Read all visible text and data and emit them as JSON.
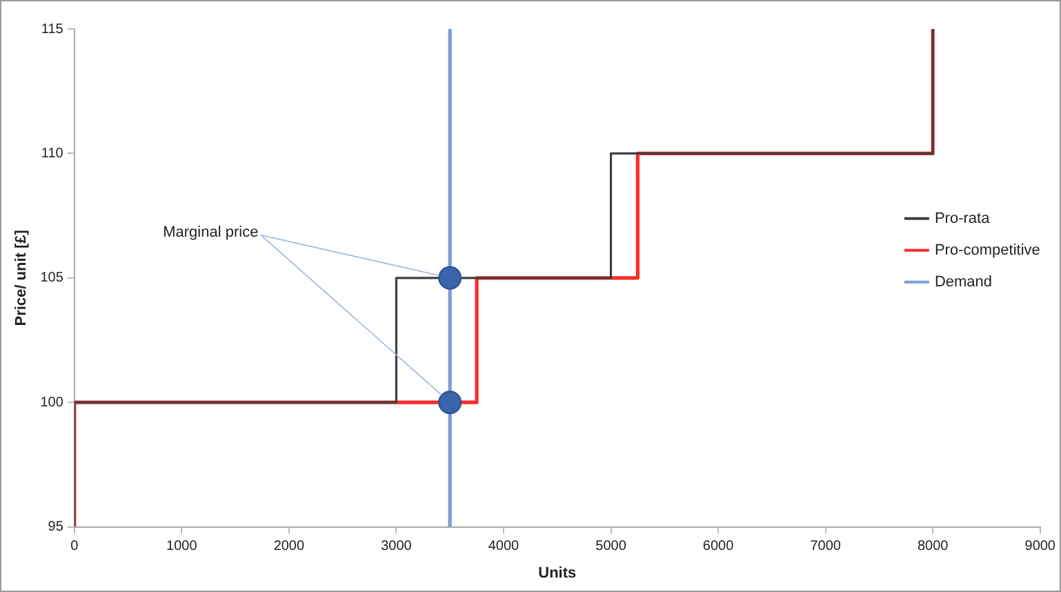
{
  "chart_data": {
    "type": "line",
    "xlabel": "Units",
    "ylabel": "Price/ unit [£]",
    "xlim": [
      0,
      9000
    ],
    "xticks": [
      0,
      1000,
      2000,
      3000,
      4000,
      5000,
      6000,
      7000,
      8000,
      9000
    ],
    "ylim": [
      95,
      115
    ],
    "yticks": [
      95,
      100,
      105,
      110,
      115
    ],
    "grid": false,
    "legend": "right",
    "marker": "none",
    "series": [
      {
        "name": "Pro-rata",
        "color": "#404040",
        "x": [
          0,
          0,
          3000,
          3000,
          5000,
          5000,
          8000,
          8000
        ],
        "values": [
          95,
          100,
          100,
          105,
          105,
          110,
          110,
          115
        ]
      },
      {
        "name": "Pro-competitive",
        "color": "#ff2a2a",
        "x": [
          0,
          0,
          3750,
          3750,
          5250,
          5250,
          8000,
          8000
        ],
        "values": [
          95,
          100,
          100,
          105,
          105,
          110,
          110,
          115
        ]
      },
      {
        "name": "Demand",
        "color": "#7ba0d4",
        "x": [
          3500,
          3500
        ],
        "values": [
          95,
          115
        ]
      },
      {
        "type": "scatter",
        "marker": "circle",
        "color": "#3a65ad",
        "x": [
          3500,
          3500
        ],
        "values": [
          105,
          100
        ]
      }
    ],
    "annotations": [
      {
        "text": "Marginal price",
        "x": 3500,
        "y": 105
      }
    ]
  }
}
